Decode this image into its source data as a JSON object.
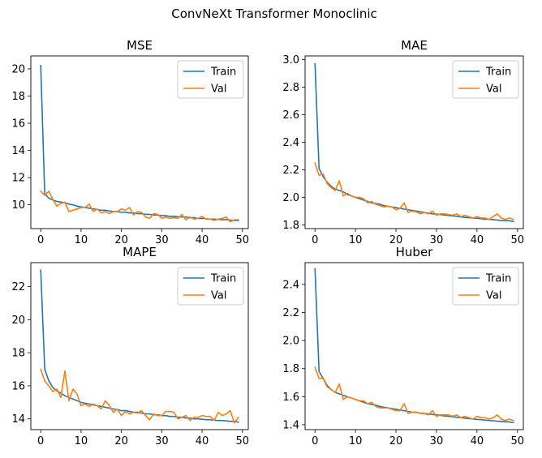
{
  "chart_data": {
    "suptitle": "ConvNeXt Transformer Monoclinic",
    "legend_placement": "upper right",
    "grid": false,
    "colors": {
      "train": "#1f77b4",
      "val": "#ff7f0e"
    },
    "subplots": [
      {
        "type": "line",
        "title": "MSE",
        "xlim": [
          -2.45,
          51.45
        ],
        "ylim": [
          8.25,
          20.95
        ],
        "xticks": [
          0,
          10,
          20,
          30,
          40,
          50
        ],
        "yticks": [
          10,
          12,
          14,
          16,
          18,
          20
        ],
        "ytick_labels": [
          "10",
          "12",
          "14",
          "16",
          "18",
          "20"
        ],
        "series": [
          {
            "name": "Train",
            "values": [
              20.25,
              10.8,
              10.5,
              10.35,
              10.25,
              10.2,
              10.15,
              10.05,
              10.0,
              9.9,
              9.85,
              9.8,
              9.75,
              9.7,
              9.65,
              9.6,
              9.6,
              9.55,
              9.5,
              9.5,
              9.45,
              9.45,
              9.4,
              9.4,
              9.35,
              9.35,
              9.3,
              9.3,
              9.25,
              9.25,
              9.2,
              9.2,
              9.15,
              9.15,
              9.12,
              9.1,
              9.1,
              9.05,
              9.05,
              9.0,
              9.0,
              8.98,
              8.95,
              8.95,
              8.92,
              8.9,
              8.9,
              8.88,
              8.85,
              8.85
            ]
          },
          {
            "name": "Val",
            "values": [
              11.0,
              10.7,
              11.0,
              10.4,
              9.9,
              10.1,
              10.2,
              9.5,
              9.6,
              9.7,
              9.8,
              9.8,
              10.05,
              9.5,
              9.7,
              9.4,
              9.5,
              9.35,
              9.5,
              9.5,
              9.7,
              9.6,
              9.8,
              9.25,
              9.5,
              9.45,
              9.1,
              9.0,
              9.35,
              9.3,
              9.0,
              9.1,
              9.0,
              9.05,
              9.0,
              9.3,
              8.9,
              9.1,
              8.95,
              9.0,
              9.15,
              8.95,
              8.95,
              8.85,
              8.95,
              9.0,
              9.1,
              8.75,
              8.9,
              8.9
            ]
          }
        ]
      },
      {
        "type": "line",
        "title": "MAE",
        "xlim": [
          -2.45,
          51.45
        ],
        "ylim": [
          1.773,
          3.027
        ],
        "xticks": [
          0,
          10,
          20,
          30,
          40,
          50
        ],
        "yticks": [
          1.8,
          2.0,
          2.2,
          2.4,
          2.6,
          2.8,
          3.0
        ],
        "ytick_labels": [
          "1.8",
          "2.0",
          "2.2",
          "2.4",
          "2.6",
          "2.8",
          "3.0"
        ],
        "series": [
          {
            "name": "Train",
            "values": [
              2.97,
              2.21,
              2.15,
              2.11,
              2.08,
              2.06,
              2.05,
              2.04,
              2.02,
              2.01,
              2.0,
              1.99,
              1.98,
              1.97,
              1.96,
              1.955,
              1.95,
              1.94,
              1.935,
              1.93,
              1.925,
              1.92,
              1.915,
              1.91,
              1.905,
              1.9,
              1.895,
              1.89,
              1.885,
              1.88,
              1.878,
              1.875,
              1.872,
              1.868,
              1.865,
              1.862,
              1.858,
              1.855,
              1.852,
              1.85,
              1.848,
              1.845,
              1.842,
              1.84,
              1.838,
              1.835,
              1.832,
              1.83,
              1.83,
              1.825
            ]
          },
          {
            "name": "Val",
            "values": [
              2.25,
              2.16,
              2.17,
              2.1,
              2.07,
              2.05,
              2.12,
              2.01,
              2.03,
              2.01,
              2.0,
              2.0,
              1.99,
              1.96,
              1.97,
              1.95,
              1.94,
              1.93,
              1.935,
              1.93,
              1.91,
              1.92,
              1.96,
              1.89,
              1.9,
              1.895,
              1.88,
              1.89,
              1.88,
              1.9,
              1.87,
              1.88,
              1.88,
              1.875,
              1.87,
              1.88,
              1.86,
              1.87,
              1.86,
              1.85,
              1.86,
              1.85,
              1.85,
              1.84,
              1.86,
              1.88,
              1.85,
              1.84,
              1.85,
              1.84
            ]
          }
        ]
      },
      {
        "type": "line",
        "title": "MAPE",
        "xlim": [
          -2.45,
          51.45
        ],
        "ylim": [
          13.35,
          23.45
        ],
        "xticks": [
          0,
          10,
          20,
          30,
          40,
          50
        ],
        "yticks": [
          14,
          16,
          18,
          20,
          22
        ],
        "ytick_labels": [
          "14",
          "16",
          "18",
          "20",
          "22"
        ],
        "series": [
          {
            "name": "Train",
            "values": [
              23.0,
              17.0,
              16.3,
              15.9,
              15.7,
              15.55,
              15.4,
              15.3,
              15.2,
              15.1,
              15.0,
              14.95,
              14.9,
              14.85,
              14.8,
              14.75,
              14.7,
              14.65,
              14.6,
              14.55,
              14.5,
              14.5,
              14.45,
              14.4,
              14.4,
              14.35,
              14.3,
              14.3,
              14.25,
              14.25,
              14.2,
              14.2,
              14.15,
              14.15,
              14.1,
              14.1,
              14.05,
              14.05,
              14.0,
              14.0,
              13.98,
              13.95,
              13.95,
              13.92,
              13.9,
              13.9,
              13.88,
              13.85,
              13.85,
              13.8
            ]
          },
          {
            "name": "Val",
            "values": [
              17.0,
              16.3,
              16.0,
              15.65,
              15.8,
              15.3,
              16.9,
              15.1,
              15.8,
              15.5,
              14.8,
              14.9,
              14.75,
              14.9,
              14.8,
              14.6,
              15.1,
              14.8,
              14.4,
              14.6,
              14.2,
              14.45,
              14.3,
              14.4,
              14.35,
              14.5,
              14.2,
              13.95,
              14.3,
              14.2,
              14.2,
              14.45,
              14.45,
              14.4,
              14.0,
              14.1,
              14.2,
              13.9,
              14.1,
              14.1,
              14.2,
              14.15,
              14.15,
              13.9,
              14.4,
              14.2,
              14.3,
              14.5,
              13.75,
              14.1
            ]
          }
        ]
      },
      {
        "type": "line",
        "title": "Huber",
        "xlim": [
          -2.45,
          51.45
        ],
        "ylim": [
          1.365,
          2.555
        ],
        "xticks": [
          0,
          10,
          20,
          30,
          40,
          50
        ],
        "yticks": [
          1.4,
          1.6,
          1.8,
          2.0,
          2.2,
          2.4
        ],
        "ytick_labels": [
          "1.4",
          "1.6",
          "1.8",
          "2.0",
          "2.2",
          "2.4"
        ],
        "series": [
          {
            "name": "Train",
            "values": [
              2.51,
              1.78,
              1.73,
              1.68,
              1.65,
              1.63,
              1.62,
              1.61,
              1.6,
              1.59,
              1.58,
              1.57,
              1.56,
              1.55,
              1.545,
              1.54,
              1.53,
              1.525,
              1.52,
              1.515,
              1.51,
              1.505,
              1.5,
              1.495,
              1.49,
              1.487,
              1.483,
              1.48,
              1.477,
              1.473,
              1.47,
              1.467,
              1.463,
              1.46,
              1.457,
              1.453,
              1.45,
              1.447,
              1.444,
              1.441,
              1.438,
              1.436,
              1.433,
              1.43,
              1.428,
              1.425,
              1.423,
              1.42,
              1.42,
              1.415
            ]
          },
          {
            "name": "Val",
            "values": [
              1.81,
              1.73,
              1.73,
              1.67,
              1.65,
              1.63,
              1.69,
              1.58,
              1.6,
              1.59,
              1.58,
              1.57,
              1.57,
              1.55,
              1.56,
              1.53,
              1.52,
              1.52,
              1.52,
              1.51,
              1.5,
              1.5,
              1.55,
              1.48,
              1.49,
              1.49,
              1.48,
              1.48,
              1.47,
              1.5,
              1.46,
              1.47,
              1.47,
              1.47,
              1.46,
              1.47,
              1.45,
              1.46,
              1.45,
              1.44,
              1.46,
              1.45,
              1.45,
              1.44,
              1.45,
              1.47,
              1.44,
              1.43,
              1.44,
              1.43
            ]
          }
        ]
      }
    ]
  }
}
